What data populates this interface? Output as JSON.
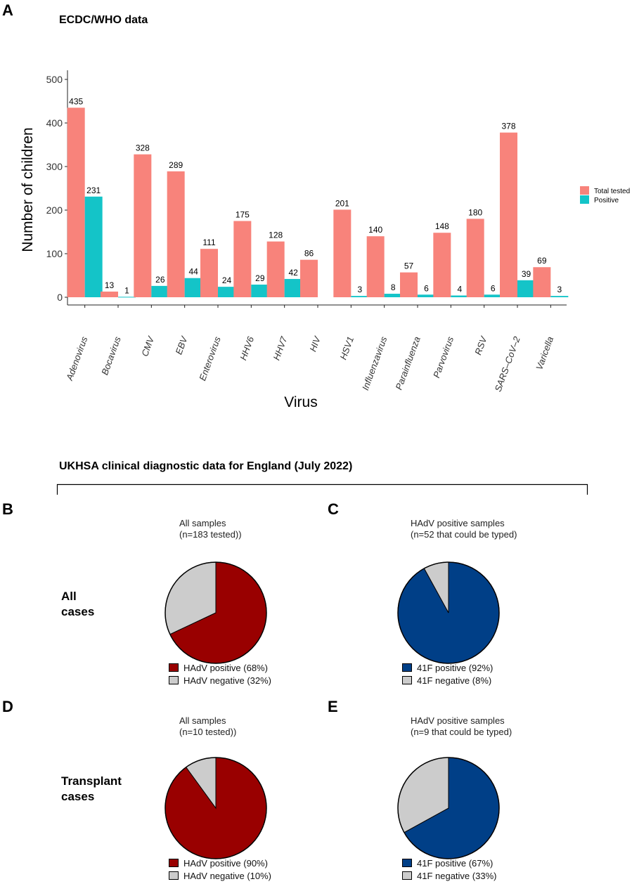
{
  "panel_a": {
    "letter": "A",
    "heading": "ECDC/WHO data"
  },
  "chart_data": {
    "type": "bar",
    "title": "ECDC/WHO data",
    "xlabel": "Virus",
    "ylabel": "Number of children",
    "ylim": [
      0,
      500
    ],
    "yticks": [
      0,
      100,
      200,
      300,
      400,
      500
    ],
    "categories": [
      "Adenovirus",
      "Bocavirus",
      "CMV",
      "EBV",
      "Enterovirus",
      "HHV6",
      "HHV7",
      "HIV",
      "HSV1",
      "Influenzavirus",
      "Parainfluenza",
      "Parvovirus",
      "RSV",
      "SARS–CoV–2",
      "Varicella"
    ],
    "series": [
      {
        "name": "Total tested",
        "color": "#f8837b",
        "values": [
          435,
          13,
          328,
          289,
          111,
          175,
          128,
          86,
          201,
          140,
          57,
          148,
          180,
          378,
          69
        ]
      },
      {
        "name": "Positive",
        "color": "#14c4c8",
        "values": [
          231,
          1,
          26,
          44,
          24,
          29,
          42,
          null,
          3,
          8,
          6,
          4,
          6,
          39,
          3
        ]
      }
    ],
    "legend": "right"
  },
  "ukhsa": {
    "heading": "UKHSA clinical diagnostic data for England (July 2022)",
    "row_all": "All\ncases",
    "row_transplant": "Transplant\ncases"
  },
  "pies": [
    {
      "letter": "B",
      "title": "All samples\n(n=183 tested))",
      "slices": [
        {
          "label": "HAdV positive (68%)",
          "value": 68,
          "color": "#990000"
        },
        {
          "label": "HAdV negative (32%)",
          "value": 32,
          "color": "#cccccc"
        }
      ]
    },
    {
      "letter": "C",
      "title": "HAdV positive samples\n(n=52 that could be typed)",
      "slices": [
        {
          "label": "41F positive (92%)",
          "value": 92,
          "color": "#003f87"
        },
        {
          "label": "41F negative (8%)",
          "value": 8,
          "color": "#cccccc"
        }
      ]
    },
    {
      "letter": "D",
      "title": "All samples\n(n=10 tested))",
      "slices": [
        {
          "label": "HAdV positive (90%)",
          "value": 90,
          "color": "#990000"
        },
        {
          "label": "HAdV negative (10%)",
          "value": 10,
          "color": "#cccccc"
        }
      ]
    },
    {
      "letter": "E",
      "title": "HAdV positive samples\n(n=9 that could be typed)",
      "slices": [
        {
          "label": "41F positive (67%)",
          "value": 67,
          "color": "#003f87"
        },
        {
          "label": "41F negative (33%)",
          "value": 33,
          "color": "#cccccc"
        }
      ]
    }
  ]
}
